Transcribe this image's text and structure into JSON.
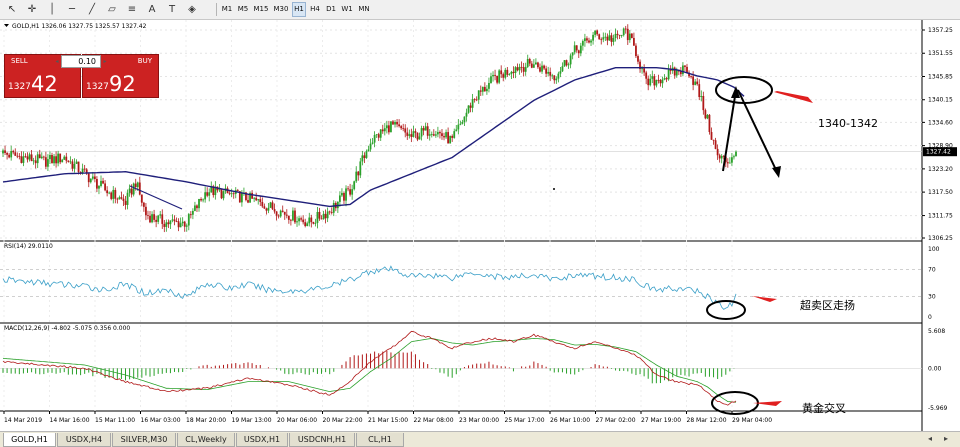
{
  "toolbar": {
    "tools": [
      {
        "icon": "cursor-icon",
        "glyph": "↖"
      },
      {
        "icon": "crosshair-icon",
        "glyph": "✛"
      },
      {
        "icon": "vertical-line-icon",
        "glyph": "│"
      },
      {
        "icon": "horizontal-line-icon",
        "glyph": "─"
      },
      {
        "icon": "trendline-icon",
        "glyph": "╱"
      },
      {
        "icon": "channel-icon",
        "glyph": "▱"
      },
      {
        "icon": "fibonacci-icon",
        "glyph": "≡"
      },
      {
        "icon": "text-tool-icon",
        "glyph": "A"
      },
      {
        "icon": "label-icon",
        "glyph": "T"
      },
      {
        "icon": "shapes-icon",
        "glyph": "◈"
      }
    ],
    "timeframes": [
      "M1",
      "M5",
      "M15",
      "M30",
      "H1",
      "H4",
      "D1",
      "W1",
      "MN"
    ],
    "active_timeframe": "H1"
  },
  "trade_panel": {
    "sell_label": "SELL",
    "buy_label": "BUY",
    "lot": "0.10",
    "sell_small": "1327",
    "sell_big": "42",
    "buy_small": "1327",
    "buy_big": "92"
  },
  "chart_info": "GOLD,H1  1326.06 1327.75 1325.57 1327.42",
  "rsi_label": "RSI(14) 29.0110",
  "macd_label": "MACD(12,26,9) -4.802 -5.075 0.356 0.000",
  "annotations": {
    "target_text": "1340-1342",
    "oversold_text": "超卖区走扬",
    "golden_cross_text": "黄金交叉"
  },
  "colors": {
    "bull": "#2aa02a",
    "bear": "#b01818",
    "moving_average": "#1f1f7a",
    "rsi_line": "#3a9fc8",
    "macd_hist_pos": "#b01818",
    "macd_hist_neg": "#2aa02a",
    "arrow": "#e02020"
  },
  "chart_data": [
    {
      "type": "candlestick",
      "symbol": "GOLD",
      "timeframe": "H1",
      "current_price": 1327.42,
      "price_ticks": [
        "1357.25",
        "1351.55",
        "1345.85",
        "1340.15",
        "1334.60",
        "1328.90",
        "1323.20",
        "1317.50",
        "1311.75",
        "1306.25"
      ],
      "x_ticks": [
        "14 Mar 2019",
        "14 Mar 16:00",
        "15 Mar 11:00",
        "16 Mar 03:00",
        "18 Mar 20:00",
        "19 Mar 13:00",
        "20 Mar 06:00",
        "20 Mar 22:00",
        "21 Mar 15:00",
        "22 Mar 08:00",
        "23 Mar 00:00",
        "25 Mar 17:00",
        "26 Mar 10:00",
        "27 Mar 02:00",
        "27 Mar 19:00",
        "28 Mar 12:00",
        "29 Mar 04:00"
      ],
      "close_anchors": [
        [
          0,
          1327
        ],
        [
          10,
          1326
        ],
        [
          20,
          1325
        ],
        [
          30,
          1326
        ],
        [
          40,
          1322
        ],
        [
          50,
          1318
        ],
        [
          60,
          1315
        ],
        [
          65,
          1320
        ],
        [
          70,
          1312
        ],
        [
          80,
          1310
        ],
        [
          90,
          1310
        ],
        [
          100,
          1318
        ],
        [
          110,
          1317
        ],
        [
          120,
          1316
        ],
        [
          130,
          1314
        ],
        [
          140,
          1312
        ],
        [
          150,
          1310
        ],
        [
          160,
          1313
        ],
        [
          170,
          1318
        ],
        [
          180,
          1330
        ],
        [
          190,
          1334
        ],
        [
          200,
          1331
        ],
        [
          210,
          1333
        ],
        [
          220,
          1330
        ],
        [
          230,
          1340
        ],
        [
          240,
          1345
        ],
        [
          250,
          1348
        ],
        [
          260,
          1349
        ],
        [
          270,
          1346
        ],
        [
          280,
          1352
        ],
        [
          290,
          1356
        ],
        [
          300,
          1355
        ],
        [
          305,
          1357
        ],
        [
          310,
          1352
        ],
        [
          315,
          1344
        ],
        [
          320,
          1345
        ],
        [
          330,
          1347
        ],
        [
          335,
          1348
        ],
        [
          340,
          1343
        ],
        [
          345,
          1335
        ],
        [
          350,
          1326
        ],
        [
          355,
          1325
        ],
        [
          359,
          1327.4
        ]
      ],
      "ma_anchors": [
        [
          0,
          1320
        ],
        [
          30,
          1322
        ],
        [
          60,
          1322.5
        ],
        [
          90,
          1320
        ],
        [
          120,
          1317
        ],
        [
          140,
          1315.5
        ],
        [
          160,
          1314
        ],
        [
          170,
          1314.5
        ],
        [
          180,
          1318
        ],
        [
          200,
          1322
        ],
        [
          220,
          1326
        ],
        [
          240,
          1333
        ],
        [
          260,
          1340
        ],
        [
          280,
          1345
        ],
        [
          300,
          1348
        ],
        [
          320,
          1348
        ],
        [
          330,
          1347.5
        ],
        [
          340,
          1346
        ],
        [
          350,
          1345
        ],
        [
          359,
          1343
        ]
      ]
    },
    {
      "type": "line",
      "name": "RSI(14)",
      "ylim": [
        0,
        100
      ],
      "y_ticks": [
        "100",
        "70",
        "30",
        "0"
      ],
      "anchors": [
        [
          0,
          55
        ],
        [
          20,
          50
        ],
        [
          40,
          45
        ],
        [
          50,
          40
        ],
        [
          60,
          48
        ],
        [
          70,
          35
        ],
        [
          80,
          40
        ],
        [
          90,
          30
        ],
        [
          100,
          50
        ],
        [
          110,
          42
        ],
        [
          120,
          48
        ],
        [
          130,
          40
        ],
        [
          140,
          38
        ],
        [
          150,
          40
        ],
        [
          160,
          45
        ],
        [
          170,
          55
        ],
        [
          180,
          68
        ],
        [
          190,
          70
        ],
        [
          200,
          60
        ],
        [
          210,
          62
        ],
        [
          220,
          58
        ],
        [
          230,
          66
        ],
        [
          240,
          60
        ],
        [
          250,
          58
        ],
        [
          260,
          62
        ],
        [
          270,
          55
        ],
        [
          280,
          62
        ],
        [
          290,
          60
        ],
        [
          300,
          58
        ],
        [
          310,
          55
        ],
        [
          315,
          45
        ],
        [
          320,
          40
        ],
        [
          330,
          42
        ],
        [
          340,
          38
        ],
        [
          345,
          30
        ],
        [
          350,
          20
        ],
        [
          355,
          12
        ],
        [
          359,
          29
        ]
      ]
    },
    {
      "type": "macd",
      "name": "MACD(12,26,9)",
      "y_ticks": [
        "5.608",
        "0.00",
        "-5.969"
      ],
      "ylim": [
        -5.969,
        5.608
      ],
      "macd_anchors": [
        [
          0,
          1
        ],
        [
          20,
          0.5
        ],
        [
          40,
          0
        ],
        [
          60,
          -2
        ],
        [
          80,
          -3.5
        ],
        [
          100,
          -3
        ],
        [
          120,
          -1.5
        ],
        [
          140,
          -2.5
        ],
        [
          160,
          -4
        ],
        [
          170,
          -2
        ],
        [
          180,
          1
        ],
        [
          190,
          3
        ],
        [
          200,
          5.5
        ],
        [
          210,
          4.5
        ],
        [
          220,
          3
        ],
        [
          230,
          4
        ],
        [
          240,
          4.5
        ],
        [
          250,
          4
        ],
        [
          260,
          5
        ],
        [
          270,
          4
        ],
        [
          280,
          3
        ],
        [
          290,
          4
        ],
        [
          300,
          3
        ],
        [
          310,
          2
        ],
        [
          320,
          -1
        ],
        [
          330,
          -2
        ],
        [
          340,
          -2.5
        ],
        [
          345,
          -3.5
        ],
        [
          350,
          -5
        ],
        [
          355,
          -5.5
        ],
        [
          359,
          -4.8
        ]
      ],
      "signal_anchors": [
        [
          0,
          1.5
        ],
        [
          20,
          1
        ],
        [
          40,
          0.5
        ],
        [
          60,
          -1
        ],
        [
          80,
          -3
        ],
        [
          100,
          -3.2
        ],
        [
          120,
          -2
        ],
        [
          140,
          -2
        ],
        [
          160,
          -3.5
        ],
        [
          170,
          -3
        ],
        [
          180,
          -0.5
        ],
        [
          190,
          1.5
        ],
        [
          200,
          4
        ],
        [
          210,
          4.5
        ],
        [
          220,
          3.8
        ],
        [
          230,
          3.5
        ],
        [
          240,
          4
        ],
        [
          250,
          4.2
        ],
        [
          260,
          4.5
        ],
        [
          270,
          4.3
        ],
        [
          280,
          3.5
        ],
        [
          290,
          3.6
        ],
        [
          300,
          3.2
        ],
        [
          310,
          2.5
        ],
        [
          320,
          0.5
        ],
        [
          330,
          -1.2
        ],
        [
          340,
          -2
        ],
        [
          345,
          -2.8
        ],
        [
          350,
          -4
        ],
        [
          355,
          -5
        ],
        [
          359,
          -5.1
        ]
      ]
    }
  ],
  "tabs": [
    "GOLD,H1",
    "USDX,H4",
    "SILVER,M30",
    "CL,Weekly",
    "USDX,H1",
    "USDCNH,H1",
    "CL,H1"
  ],
  "active_tab": 0
}
